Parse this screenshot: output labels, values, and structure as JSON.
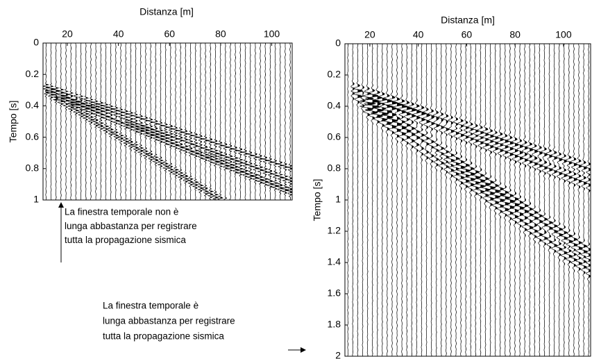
{
  "chart_data": [
    {
      "type": "seismogram",
      "x_label": "Distanza [m]",
      "y_label": "Tempo [s]",
      "xlim": [
        10.5,
        108
      ],
      "xticks": [
        20,
        40,
        60,
        80,
        100
      ],
      "ylim": [
        0,
        1
      ],
      "yticks": [
        0,
        0.2,
        0.4,
        0.6,
        0.8,
        1
      ],
      "series": [
        {
          "x": [
            12,
            108
          ],
          "values": [
            0.28,
            0.8
          ]
        },
        {
          "x": [
            12,
            108
          ],
          "values": [
            0.3,
            0.88
          ]
        },
        {
          "x": [
            12,
            108
          ],
          "values": [
            0.31,
            0.95
          ]
        },
        {
          "x": [
            14,
            80
          ],
          "values": [
            0.33,
            1.0
          ]
        }
      ],
      "annotation": [
        "La finestra temporale non è",
        "lunga abbastanza per registrare",
        "tutta la propagazione sismica"
      ]
    },
    {
      "type": "seismogram",
      "x_label": "Distanza [m]",
      "y_label": "Tempo [s]",
      "xlim": [
        9.7,
        111.2
      ],
      "xticks": [
        20,
        40,
        60,
        80,
        100
      ],
      "ylim": [
        0,
        2
      ],
      "yticks": [
        0,
        0.2,
        0.4,
        0.6,
        0.8,
        1,
        1.2,
        1.4,
        1.6,
        1.8,
        2
      ],
      "series": [
        {
          "x": [
            12,
            111
          ],
          "values": [
            0.28,
            0.8
          ]
        },
        {
          "x": [
            12,
            111
          ],
          "values": [
            0.3,
            0.9
          ]
        },
        {
          "x": [
            14,
            111
          ],
          "values": [
            0.32,
            1.35
          ]
        },
        {
          "x": [
            20,
            111
          ],
          "values": [
            0.42,
            1.45
          ]
        }
      ],
      "annotation": [
        "La finestra temporale è",
        "lunga abbastanza per registrare",
        "tutta la propagazione sismica"
      ]
    }
  ]
}
